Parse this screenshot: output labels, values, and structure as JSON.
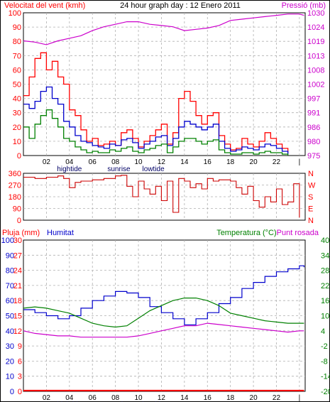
{
  "colors": {
    "grid": "#b0b0b0",
    "axis": "#000000",
    "wind_label": "#ff0000",
    "pressure": "#cc00cc",
    "gust": "#ff0000",
    "avg": "#0000cc",
    "low": "#008000",
    "direction": "#cc0000",
    "rain": "#ff0000",
    "humidity": "#0000cc",
    "temperature": "#008000",
    "dewpoint": "#cc00cc",
    "tide_text": "#000066"
  },
  "header": {
    "wind_label": "Velocitat del vent (kmh)",
    "title": "24 hour graph day : 12 Enero 2011",
    "pressure_label": "Pressió (mb)"
  },
  "x_ticks": [
    "02",
    "04",
    "06",
    "08",
    "10",
    "12",
    "14",
    "16",
    "18",
    "20",
    "22",
    "|"
  ],
  "x_tick_hours": [
    2,
    4,
    6,
    8,
    10,
    12,
    14,
    16,
    18,
    20,
    22,
    24
  ],
  "events": [
    {
      "label": "hightide",
      "hour": 4
    },
    {
      "label": "sunrise",
      "hour": 8.3
    },
    {
      "label": "lowtide",
      "hour": 11.3
    }
  ],
  "chart_data": [
    {
      "type": "line",
      "title": "24 hour graph day : 12 Enero 2011",
      "x_range": [
        0,
        24.5
      ],
      "y_left": {
        "label": "Velocitat del vent (kmh)",
        "range": [
          0,
          100
        ],
        "ticks": [
          0,
          10,
          20,
          30,
          40,
          50,
          60,
          70,
          80,
          90,
          100
        ]
      },
      "y_right": {
        "label": "Pressió (mb)",
        "range": [
          974,
          1030
        ],
        "ticks": [
          "975",
          "980",
          "986",
          "991",
          "997",
          "1002",
          "1008",
          "1013",
          "1019",
          "1024",
          "1030"
        ]
      },
      "series": [
        {
          "axis": "right",
          "x": [
            0,
            1,
            2,
            3,
            4,
            5,
            6,
            7,
            8,
            9,
            10,
            11,
            12,
            13,
            14,
            15,
            16,
            17,
            18,
            19,
            20,
            21,
            22,
            23,
            24,
            24.4
          ],
          "values": [
            1019,
            1018.5,
            1017.5,
            1019,
            1020,
            1021,
            1023,
            1024.5,
            1025.5,
            1026.5,
            1026.5,
            1025.5,
            1025,
            1024.5,
            1023,
            1023.5,
            1024,
            1025,
            1027,
            1027.5,
            1028,
            1028.5,
            1029,
            1029.5,
            1029.5,
            1029
          ]
        },
        {
          "axis": "left",
          "x": [
            0,
            0.5,
            1,
            1.5,
            2,
            2.5,
            3,
            3.5,
            4,
            4.5,
            5,
            5.5,
            6,
            6.5,
            7,
            7.5,
            8,
            8.5,
            9,
            9.5,
            10,
            10.5,
            11,
            11.5,
            12,
            12.5,
            13,
            13.5,
            14,
            14.5,
            15,
            15.5,
            16,
            16.5,
            17,
            17.5,
            18,
            18.5,
            19,
            19.5,
            20,
            20.5,
            21,
            21.5,
            22,
            22.5,
            23
          ],
          "values": [
            42,
            55,
            68,
            72,
            60,
            66,
            55,
            50,
            32,
            28,
            18,
            10,
            12,
            7,
            8,
            10,
            7,
            16,
            18,
            12,
            6,
            10,
            14,
            18,
            22,
            8,
            16,
            40,
            45,
            38,
            28,
            22,
            28,
            30,
            14,
            8,
            4,
            5,
            12,
            8,
            6,
            10,
            16,
            12,
            8,
            5,
            2
          ]
        },
        {
          "axis": "left",
          "x": [
            0,
            0.5,
            1,
            1.5,
            2,
            2.5,
            3,
            3.5,
            4,
            4.5,
            5,
            5.5,
            6,
            6.5,
            7,
            7.5,
            8,
            8.5,
            9,
            9.5,
            10,
            10.5,
            11,
            11.5,
            12,
            12.5,
            13,
            13.5,
            14,
            14.5,
            15,
            15.5,
            16,
            16.5,
            17,
            17.5,
            18,
            18.5,
            19,
            19.5,
            20,
            20.5,
            21,
            21.5,
            22,
            22.5,
            23
          ],
          "values": [
            36,
            33,
            38,
            45,
            48,
            40,
            36,
            24,
            20,
            14,
            10,
            9,
            7,
            6,
            5,
            8,
            7,
            11,
            12,
            9,
            5,
            8,
            10,
            13,
            14,
            7,
            12,
            20,
            24,
            22,
            20,
            18,
            20,
            22,
            10,
            5,
            3,
            4,
            6,
            5,
            4,
            6,
            8,
            7,
            5,
            3,
            1
          ]
        },
        {
          "axis": "left",
          "x": [
            0,
            0.5,
            1,
            1.5,
            2,
            2.5,
            3,
            3.5,
            4,
            4.5,
            5,
            5.5,
            6,
            6.5,
            7,
            7.5,
            8,
            8.5,
            9,
            9.5,
            10,
            10.5,
            11,
            11.5,
            12,
            12.5,
            13,
            13.5,
            14,
            14.5,
            15,
            15.5,
            16,
            16.5,
            17,
            17.5,
            18,
            18.5,
            19,
            19.5,
            20,
            20.5,
            21,
            21.5,
            22,
            22.5,
            23
          ],
          "values": [
            20,
            12,
            22,
            28,
            32,
            26,
            20,
            12,
            10,
            6,
            4,
            2,
            3,
            2,
            2,
            4,
            3,
            5,
            6,
            3,
            2,
            4,
            5,
            7,
            8,
            2,
            6,
            10,
            12,
            12,
            10,
            8,
            10,
            11,
            4,
            2,
            1,
            1,
            2,
            2,
            1,
            2,
            3,
            2,
            2,
            1,
            0
          ]
        }
      ]
    },
    {
      "type": "line",
      "x_range": [
        0,
        24.5
      ],
      "y_left": {
        "range": [
          0,
          360
        ],
        "ticks": [
          "0",
          "90",
          "180",
          "270",
          "360"
        ]
      },
      "y_right": {
        "ticks": [
          "N",
          "W",
          "S",
          "E",
          "N"
        ]
      },
      "series": [
        {
          "x": [
            0,
            1,
            2,
            3,
            3.5,
            4,
            4.5,
            5,
            6,
            7,
            8,
            8.5,
            9,
            9.5,
            10,
            10.5,
            11,
            11.5,
            12,
            12.5,
            13,
            13.5,
            14,
            14.5,
            15,
            15.5,
            16,
            16.5,
            17,
            18,
            18.5,
            19,
            19.5,
            20,
            20.5,
            21,
            21.5,
            22,
            22.5,
            23,
            23.5,
            24
          ],
          "values": [
            330,
            320,
            330,
            340,
            320,
            250,
            290,
            300,
            310,
            320,
            340,
            345,
            260,
            180,
            300,
            240,
            200,
            260,
            150,
            300,
            60,
            320,
            300,
            250,
            280,
            240,
            320,
            300,
            310,
            300,
            250,
            200,
            260,
            150,
            100,
            180,
            140,
            240,
            120,
            140,
            280,
            20
          ]
        }
      ]
    },
    {
      "type": "line",
      "x_range": [
        0,
        24.5
      ],
      "y_left": {
        "label": "Pluja (mm) Humitat",
        "range": [
          0,
          100
        ],
        "ticks": [
          "0",
          "10",
          "20",
          "30",
          "40",
          "50",
          "60",
          "70",
          "80",
          "90",
          "100"
        ]
      },
      "y_left_inner": {
        "ticks": [
          "0",
          "3",
          "6",
          "9",
          "12",
          "15",
          "18",
          "21",
          "24",
          "27",
          "30"
        ]
      },
      "y_right": {
        "label": "Temperatura (°C)Punt rosada",
        "range": [
          -20,
          40
        ],
        "ticks": [
          "-20",
          "-14",
          "-8",
          "-2",
          "4",
          "10",
          "16",
          "22",
          "28",
          "34",
          "40"
        ]
      },
      "legend": [
        "Pluja (mm)",
        "Humitat",
        "Temperatura (°C)",
        "Punt rosada"
      ],
      "series": [
        {
          "axis": "left",
          "x": [
            0,
            24.4
          ],
          "values": [
            0.5,
            0.5
          ]
        },
        {
          "axis": "left",
          "x": [
            0,
            1,
            2,
            3,
            4,
            5,
            6,
            7,
            8,
            9,
            10,
            11,
            12,
            13,
            14,
            15,
            16,
            17,
            18,
            19,
            20,
            21,
            22,
            23,
            24,
            24.4
          ],
          "values": [
            54,
            52,
            50,
            48,
            50,
            55,
            60,
            63,
            66,
            65,
            62,
            56,
            52,
            48,
            44,
            48,
            52,
            58,
            62,
            68,
            72,
            76,
            79,
            81,
            83,
            82
          ]
        },
        {
          "axis": "right",
          "x": [
            0,
            1,
            2,
            3,
            4,
            5,
            6,
            7,
            8,
            9,
            10,
            11,
            12,
            13,
            14,
            15,
            16,
            17,
            18,
            19,
            20,
            21,
            22,
            23,
            24,
            24.4
          ],
          "values": [
            13,
            13.5,
            13,
            12,
            11,
            9,
            7,
            6,
            5.5,
            6,
            9,
            12,
            14,
            16,
            17,
            17,
            16,
            14,
            11,
            10,
            9,
            8,
            7.5,
            7,
            7,
            7
          ]
        },
        {
          "axis": "right",
          "x": [
            0,
            1,
            2,
            3,
            4,
            5,
            6,
            7,
            8,
            9,
            10,
            11,
            12,
            13,
            14,
            15,
            16,
            17,
            18,
            19,
            20,
            21,
            22,
            23,
            24,
            24.4
          ],
          "values": [
            4,
            3,
            2.5,
            2,
            2,
            1.5,
            1.5,
            1.5,
            1.5,
            1.5,
            2,
            3,
            4,
            5,
            6,
            6,
            7,
            6.5,
            6,
            5.5,
            5,
            4.5,
            4,
            3.5,
            4,
            4
          ]
        }
      ]
    }
  ]
}
